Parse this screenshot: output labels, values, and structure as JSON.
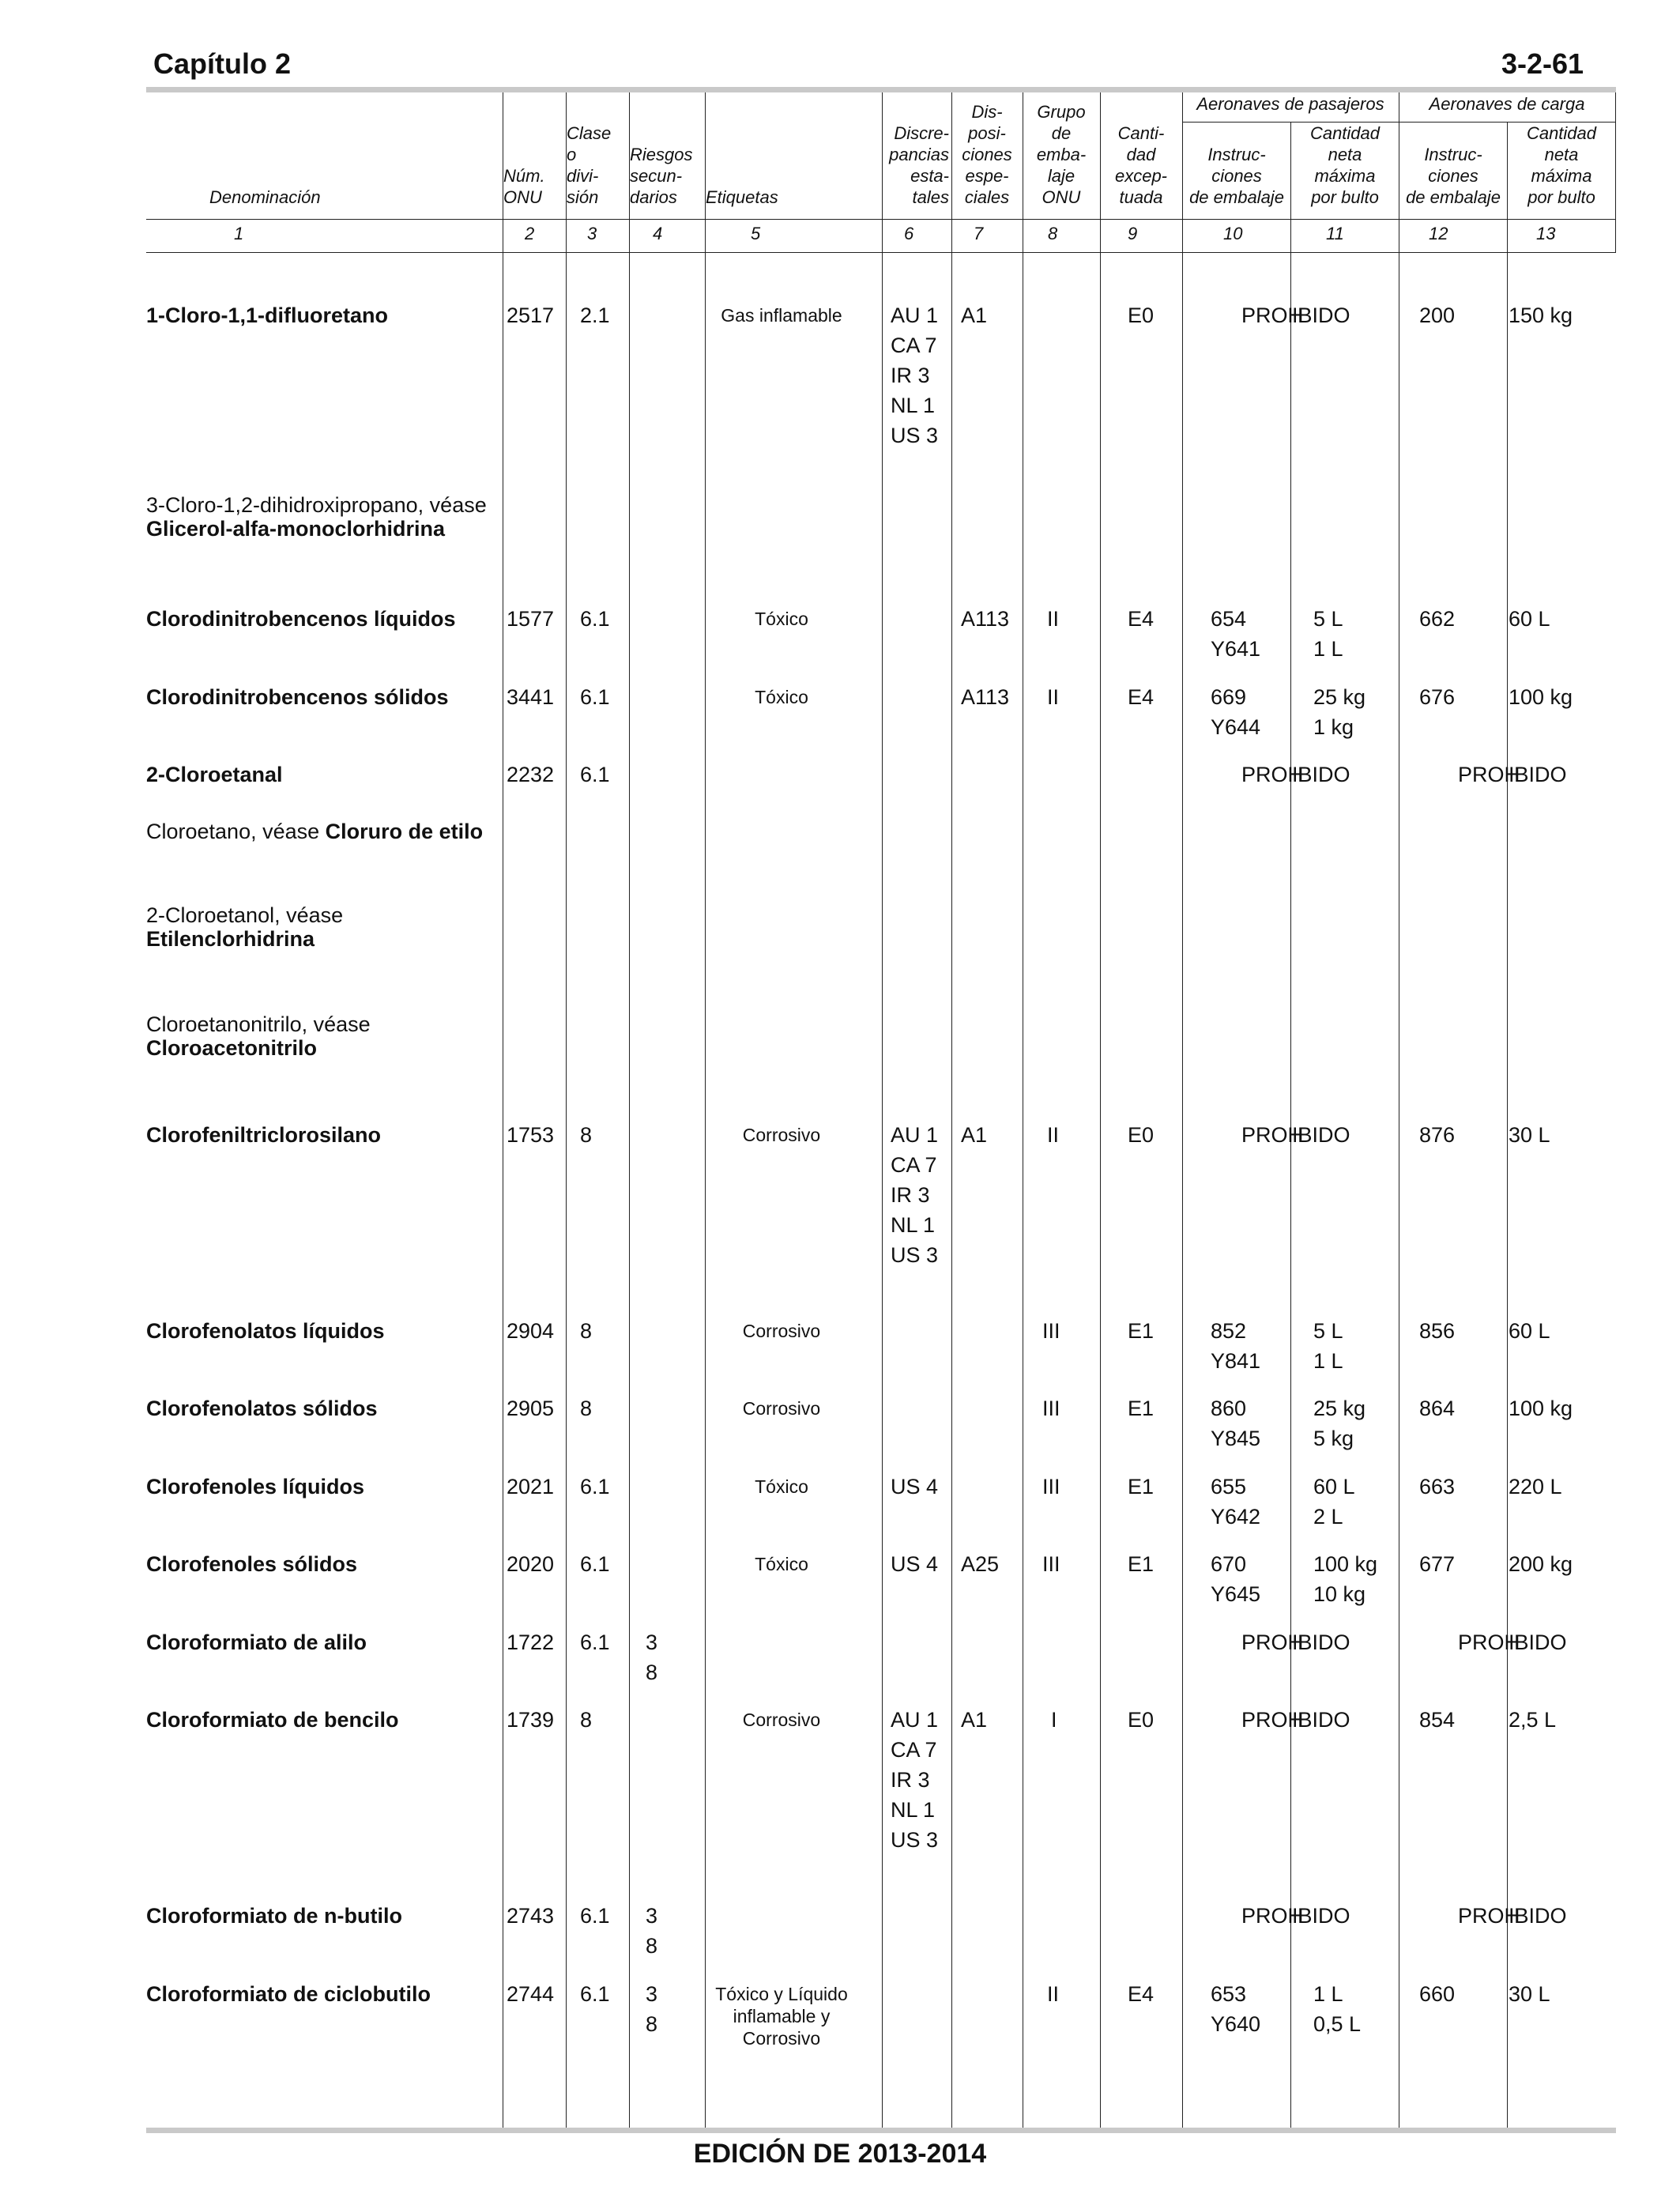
{
  "page": {
    "chapter": "Capítulo 2",
    "page_number": "3-2-61",
    "footer": "EDICIÓN DE 2013-2014"
  },
  "table": {
    "group_passenger": "Aeronaves de pasajeros",
    "group_cargo": "Aeronaves de carga",
    "headers": {
      "c1": "Denominación",
      "c2": "Núm.\nONU",
      "c3": "Clase\no\ndivi-\nsión",
      "c4": "Riesgos\nsecun-\ndarios",
      "c5": "Etiquetas",
      "c6": "Discre-\npancias\nesta-\ntales",
      "c7": "Dis-\nposi-\nciones\nespe-\nciales",
      "c8": "Grupo\nde\nemba-\nlaje\nONU",
      "c9": "Canti-\ndad\nexcep-\ntuada",
      "c10": "Instruc-\nciones\nde embalaje",
      "c11": "Cantidad\nneta\nmáxima\npor bulto",
      "c12": "Instruc-\nciones\nde embalaje",
      "c13": "Cantidad\nneta\nmáxima\npor bulto"
    },
    "column_numbers": [
      "1",
      "2",
      "3",
      "4",
      "5",
      "6",
      "7",
      "8",
      "9",
      "10",
      "11",
      "12",
      "13"
    ],
    "prohibited_text": "PROHIBIDO",
    "rows": [
      {
        "name": "1-Cloro-1,1-difluoretano",
        "un": "2517",
        "cls": "2.1",
        "labels": "Gas inflamable",
        "var": "AU 1\nCA 7\nIR 3\nNL 1\nUS 3",
        "sp": "A1",
        "eq": "E0",
        "pax_prohibited": true,
        "cg_pi": "200",
        "cg_qty": "150 kg"
      },
      {
        "name_plain": "3-Cloro-1,2-dihidroxipropano, véase",
        "name_bold": "Glicerol-alfa-monoclorhidrina",
        "ref": true
      },
      {
        "name": "Clorodinitrobencenos líquidos",
        "un": "1577",
        "cls": "6.1",
        "labels": "Tóxico",
        "sp": "A113",
        "pg": "II",
        "eq": "E4",
        "pax_pi": "654\nY641",
        "pax_qty": "5 L\n1 L",
        "cg_pi": "662",
        "cg_qty": "60 L"
      },
      {
        "name": "Clorodinitrobencenos sólidos",
        "un": "3441",
        "cls": "6.1",
        "labels": "Tóxico",
        "sp": "A113",
        "pg": "II",
        "eq": "E4",
        "pax_pi": "669\nY644",
        "pax_qty": "25 kg\n1 kg",
        "cg_pi": "676",
        "cg_qty": "100 kg"
      },
      {
        "name": "2-Cloroetanal",
        "un": "2232",
        "cls": "6.1",
        "pax_prohibited": true,
        "cg_prohibited": true
      },
      {
        "name_plain": "Cloroetano, véase ",
        "name_bold": "Cloruro de etilo",
        "ref": true,
        "inline": true
      },
      {
        "name_plain": "2-Cloroetanol, véase",
        "name_bold": "Etilenclorhidrina",
        "ref": true
      },
      {
        "name_plain": "Cloroetanonitrilo, véase",
        "name_bold": "Cloroacetonitrilo",
        "ref": true
      },
      {
        "name": "Clorofeniltriclorosilano",
        "un": "1753",
        "cls": "8",
        "labels": "Corrosivo",
        "var": "AU 1\nCA 7\nIR 3\nNL 1\nUS 3",
        "sp": "A1",
        "pg": "II",
        "eq": "E0",
        "pax_prohibited": true,
        "cg_pi": "876",
        "cg_qty": "30 L"
      },
      {
        "name": "Clorofenolatos líquidos",
        "un": "2904",
        "cls": "8",
        "labels": "Corrosivo",
        "pg": "III",
        "eq": "E1",
        "pax_pi": "852\nY841",
        "pax_qty": "5 L\n1 L",
        "cg_pi": "856",
        "cg_qty": "60 L"
      },
      {
        "name": "Clorofenolatos sólidos",
        "un": "2905",
        "cls": "8",
        "labels": "Corrosivo",
        "pg": "III",
        "eq": "E1",
        "pax_pi": "860\nY845",
        "pax_qty": "25 kg\n5 kg",
        "cg_pi": "864",
        "cg_qty": "100 kg"
      },
      {
        "name": "Clorofenoles líquidos",
        "un": "2021",
        "cls": "6.1",
        "labels": "Tóxico",
        "var": "US 4",
        "pg": "III",
        "eq": "E1",
        "pax_pi": "655\nY642",
        "pax_qty": "60 L\n2 L",
        "cg_pi": "663",
        "cg_qty": "220 L"
      },
      {
        "name": "Clorofenoles sólidos",
        "un": "2020",
        "cls": "6.1",
        "labels": "Tóxico",
        "var": "US 4",
        "sp": "A25",
        "pg": "III",
        "eq": "E1",
        "pax_pi": "670\nY645",
        "pax_qty": "100 kg\n10 kg",
        "cg_pi": "677",
        "cg_qty": "200 kg"
      },
      {
        "name": "Cloroformiato de alilo",
        "un": "1722",
        "cls": "6.1",
        "sub": "3\n8",
        "pax_prohibited": true,
        "cg_prohibited": true
      },
      {
        "name": "Cloroformiato de bencilo",
        "un": "1739",
        "cls": "8",
        "labels": "Corrosivo",
        "var": "AU 1\nCA 7\nIR 3\nNL 1\nUS 3",
        "sp": "A1",
        "pg": "I",
        "eq": "E0",
        "pax_prohibited": true,
        "cg_pi": "854",
        "cg_qty": "2,5 L"
      },
      {
        "name": "Cloroformiato de n-butilo",
        "un": "2743",
        "cls": "6.1",
        "sub": "3\n8",
        "pax_prohibited": true,
        "cg_prohibited": true
      },
      {
        "name": "Cloroformiato de ciclobutilo",
        "un": "2744",
        "cls": "6.1",
        "sub": "3\n8",
        "labels": "Tóxico y Líquido\ninflamable y\nCorrosivo",
        "pg": "II",
        "eq": "E4",
        "pax_pi": "653\nY640",
        "pax_qty": "1 L\n0,5 L",
        "cg_pi": "660",
        "cg_qty": "30 L"
      }
    ]
  }
}
